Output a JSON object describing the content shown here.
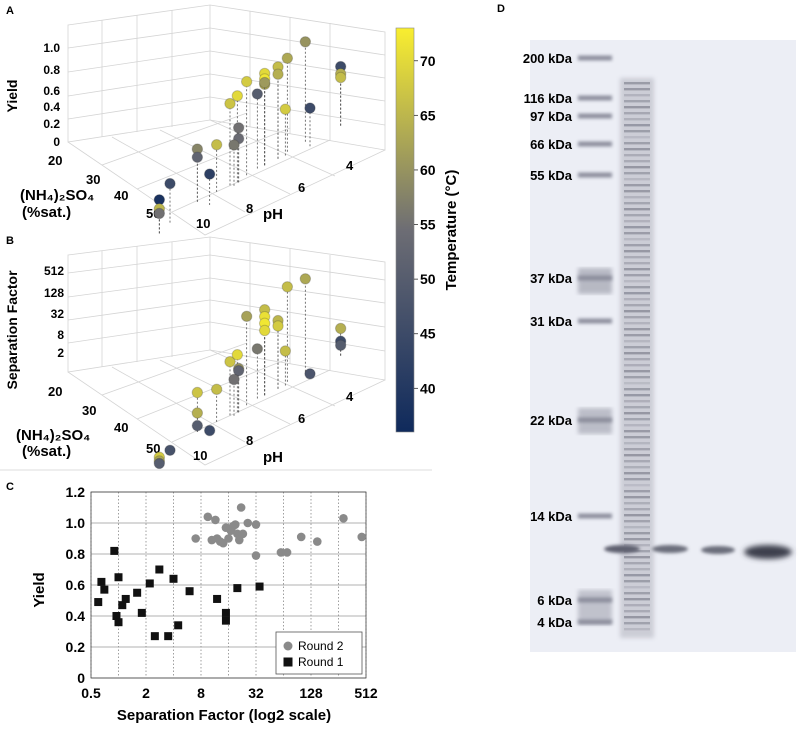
{
  "panels": {
    "a": "A",
    "b": "B",
    "c": "C",
    "d": "D"
  },
  "colorbar": {
    "label": "Temperature (°C)",
    "ticks": [
      "70",
      "65",
      "60",
      "55",
      "50",
      "45",
      "40"
    ],
    "range": [
      36,
      73
    ],
    "colors": [
      "#0f2a5c",
      "#6d6d74",
      "#f9ee2f"
    ]
  },
  "chart_data": [
    {
      "type": "scatter",
      "panel": "A",
      "title": "",
      "zlabel": "Yield",
      "xlabel": "pH",
      "ylabel_line1": "(NH₄)₂SO₄",
      "ylabel_line2": "(%sat.)",
      "z_ticks": [
        "1.0",
        "0.8",
        "0.6",
        "0.4",
        "0.2",
        "0"
      ],
      "ph_ticks": [
        "10",
        "8",
        "6",
        "4"
      ],
      "salt_ticks": [
        "20",
        "30",
        "40",
        "50"
      ],
      "points": [
        {
          "ph": 9.6,
          "salt": 22,
          "value": 0.58,
          "temp": 58
        },
        {
          "ph": 9.6,
          "salt": 22,
          "value": 0.49,
          "temp": 52
        },
        {
          "ph": 9.5,
          "salt": 35,
          "value": 0.43,
          "temp": 45
        },
        {
          "ph": 8.8,
          "salt": 24,
          "value": 0.52,
          "temp": 66
        },
        {
          "ph": 8.2,
          "salt": 26,
          "value": 0.9,
          "temp": 67
        },
        {
          "ph": 7.8,
          "salt": 24,
          "value": 1.03,
          "temp": 68
        },
        {
          "ph": 7.8,
          "salt": 28,
          "value": 0.95,
          "temp": 70
        },
        {
          "ph": 7.6,
          "salt": 30,
          "value": 0.6,
          "temp": 55
        },
        {
          "ph": 7.6,
          "salt": 30,
          "value": 0.48,
          "temp": 54
        },
        {
          "ph": 7.6,
          "salt": 32,
          "value": 0.45,
          "temp": 56
        },
        {
          "ph": 7.6,
          "salt": 22,
          "value": 0.82,
          "temp": 50
        },
        {
          "ph": 7.2,
          "salt": 24,
          "value": 1.01,
          "temp": 70
        },
        {
          "ph": 7.2,
          "salt": 24,
          "value": 0.95,
          "temp": 72
        },
        {
          "ph": 7.2,
          "salt": 24,
          "value": 0.89,
          "temp": 64
        },
        {
          "ph": 7.2,
          "salt": 24,
          "value": 0.91,
          "temp": 61
        },
        {
          "ph": 6.6,
          "salt": 22,
          "value": 1.03,
          "temp": 63
        },
        {
          "ph": 6.6,
          "salt": 26,
          "value": 1.01,
          "temp": 66
        },
        {
          "ph": 6.6,
          "salt": 26,
          "value": 0.93,
          "temp": 64
        },
        {
          "ph": 6.0,
          "salt": 22,
          "value": 1.1,
          "temp": 60
        },
        {
          "ph": 6.2,
          "salt": 28,
          "value": 0.51,
          "temp": 68
        },
        {
          "ph": 9.0,
          "salt": 46,
          "value": 0.37,
          "temp": 38
        },
        {
          "ph": 9.0,
          "salt": 46,
          "value": 0.27,
          "temp": 65
        },
        {
          "ph": 9.0,
          "salt": 46,
          "value": 0.22,
          "temp": 55
        },
        {
          "ph": 7.4,
          "salt": 45,
          "value": 0.34,
          "temp": 42
        },
        {
          "ph": 4.6,
          "salt": 38,
          "value": 0.42,
          "temp": 45
        },
        {
          "ph": 4.2,
          "salt": 30,
          "value": 0.65,
          "temp": 45
        },
        {
          "ph": 4.2,
          "salt": 30,
          "value": 0.57,
          "temp": 64
        },
        {
          "ph": 4.2,
          "salt": 30,
          "value": 0.53,
          "temp": 66
        }
      ]
    },
    {
      "type": "scatter",
      "panel": "B",
      "title": "",
      "zlabel": "Separation Factor",
      "xlabel": "pH",
      "ylabel_line1": "(NH₄)₂SO₄",
      "ylabel_line2": "(%sat.)",
      "z_ticks": [
        "512",
        "128",
        "32",
        "8",
        "2"
      ],
      "ph_ticks": [
        "10",
        "8",
        "6",
        "4"
      ],
      "salt_ticks": [
        "20",
        "30",
        "40",
        "50"
      ],
      "points": [
        {
          "ph": 9.6,
          "salt": 22,
          "value": 10,
          "temp": 67
        },
        {
          "ph": 9.6,
          "salt": 22,
          "value": 2.1,
          "temp": 64
        },
        {
          "ph": 9.6,
          "salt": 22,
          "value": 0.8,
          "temp": 50
        },
        {
          "ph": 9.5,
          "salt": 35,
          "value": 0.6,
          "temp": 47
        },
        {
          "ph": 8.8,
          "salt": 24,
          "value": 6,
          "temp": 66
        },
        {
          "ph": 8.2,
          "salt": 26,
          "value": 30,
          "temp": 67
        },
        {
          "ph": 7.8,
          "salt": 24,
          "value": 440,
          "temp": 62
        },
        {
          "ph": 7.8,
          "salt": 28,
          "value": 40,
          "temp": 70
        },
        {
          "ph": 7.6,
          "salt": 30,
          "value": 14,
          "temp": 60
        },
        {
          "ph": 7.6,
          "salt": 30,
          "value": 12,
          "temp": 52
        },
        {
          "ph": 7.6,
          "salt": 32,
          "value": 8,
          "temp": 55
        },
        {
          "ph": 7.6,
          "salt": 22,
          "value": 22,
          "temp": 56
        },
        {
          "ph": 7.2,
          "salt": 24,
          "value": 340,
          "temp": 66
        },
        {
          "ph": 7.2,
          "salt": 24,
          "value": 200,
          "temp": 71
        },
        {
          "ph": 7.2,
          "salt": 24,
          "value": 120,
          "temp": 72
        },
        {
          "ph": 7.2,
          "salt": 24,
          "value": 70,
          "temp": 70
        },
        {
          "ph": 6.6,
          "salt": 22,
          "value": 700,
          "temp": 66
        },
        {
          "ph": 6.6,
          "salt": 26,
          "value": 90,
          "temp": 65
        },
        {
          "ph": 6.6,
          "salt": 26,
          "value": 60,
          "temp": 68
        },
        {
          "ph": 6.0,
          "salt": 22,
          "value": 600,
          "temp": 63
        },
        {
          "ph": 6.2,
          "salt": 28,
          "value": 7,
          "temp": 66
        },
        {
          "ph": 9.0,
          "salt": 46,
          "value": 0.8,
          "temp": 68
        },
        {
          "ph": 9.0,
          "salt": 46,
          "value": 0.6,
          "temp": 63
        },
        {
          "ph": 9.0,
          "salt": 46,
          "value": 0.5,
          "temp": 50
        },
        {
          "ph": 7.4,
          "salt": 45,
          "value": 0.7,
          "temp": 45
        },
        {
          "ph": 4.6,
          "salt": 38,
          "value": 0.6,
          "temp": 48
        },
        {
          "ph": 4.2,
          "salt": 30,
          "value": 4,
          "temp": 64
        },
        {
          "ph": 4.2,
          "salt": 30,
          "value": 1.5,
          "temp": 45
        },
        {
          "ph": 4.2,
          "salt": 30,
          "value": 1.1,
          "temp": 50
        }
      ]
    },
    {
      "type": "scatter",
      "panel": "C",
      "title": "",
      "xlabel": "Separation Factor (log2 scale)",
      "ylabel": "Yield",
      "x_scale": "log2",
      "xlim": [
        0.5,
        512
      ],
      "ylim": [
        0,
        1.2
      ],
      "x_ticks": [
        "0.5",
        "2",
        "8",
        "32",
        "128",
        "512"
      ],
      "y_ticks": [
        "0",
        "0.2",
        "0.4",
        "0.6",
        "0.8",
        "1.0",
        "1.2"
      ],
      "grid": true,
      "legend_position": "bottom-right",
      "series": [
        {
          "name": "Round 2",
          "marker": "circle",
          "color": "#8a8a8a",
          "points": [
            [
              7,
              0.9
            ],
            [
              9.5,
              1.04
            ],
            [
              10.5,
              0.89
            ],
            [
              11.5,
              1.02
            ],
            [
              12,
              0.9
            ],
            [
              13,
              0.88
            ],
            [
              14,
              0.87
            ],
            [
              15,
              0.97
            ],
            [
              16,
              0.9
            ],
            [
              17,
              0.95
            ],
            [
              18,
              0.98
            ],
            [
              19,
              0.99
            ],
            [
              20,
              0.93
            ],
            [
              21,
              0.89
            ],
            [
              22,
              1.1
            ],
            [
              23,
              0.93
            ],
            [
              26,
              1.0
            ],
            [
              32,
              0.79
            ],
            [
              32,
              0.99
            ],
            [
              60,
              0.81
            ],
            [
              70,
              0.81
            ],
            [
              100,
              0.91
            ],
            [
              150,
              0.88
            ],
            [
              290,
              1.03
            ],
            [
              460,
              0.91
            ]
          ]
        },
        {
          "name": "Round 1",
          "marker": "square",
          "color": "#111111",
          "points": [
            [
              0.6,
              0.49
            ],
            [
              0.65,
              0.62
            ],
            [
              0.7,
              0.57
            ],
            [
              0.9,
              0.82
            ],
            [
              1.0,
              0.65
            ],
            [
              0.95,
              0.4
            ],
            [
              1.0,
              0.36
            ],
            [
              1.1,
              0.47
            ],
            [
              1.2,
              0.51
            ],
            [
              1.6,
              0.55
            ],
            [
              1.8,
              0.42
            ],
            [
              2.2,
              0.61
            ],
            [
              2.5,
              0.27
            ],
            [
              2.8,
              0.7
            ],
            [
              3.5,
              0.27
            ],
            [
              4.0,
              0.64
            ],
            [
              4.5,
              0.34
            ],
            [
              6.0,
              0.56
            ],
            [
              12,
              0.51
            ],
            [
              15,
              0.42
            ],
            [
              15,
              0.37
            ],
            [
              20,
              0.58
            ],
            [
              35,
              0.59
            ]
          ]
        }
      ]
    }
  ],
  "gel": {
    "ladder": [
      {
        "label": "200 kDa",
        "y": 58
      },
      {
        "label": "116 kDa",
        "y": 98
      },
      {
        "label": "97 kDa",
        "y": 116
      },
      {
        "label": "66 kDa",
        "y": 144
      },
      {
        "label": "55 kDa",
        "y": 175
      },
      {
        "label": "37 kDa",
        "y": 278
      },
      {
        "label": "31 kDa",
        "y": 321
      },
      {
        "label": "22 kDa",
        "y": 420
      },
      {
        "label": "14 kDa",
        "y": 516
      },
      {
        "label": "6 kDa",
        "y": 600
      },
      {
        "label": "4 kDa",
        "y": 622
      }
    ]
  }
}
